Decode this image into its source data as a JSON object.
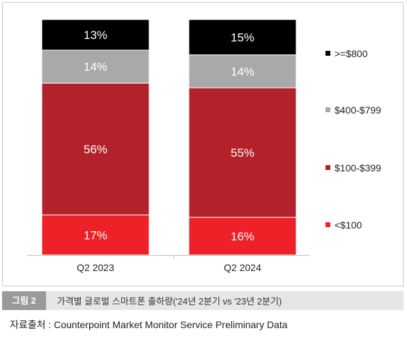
{
  "chart_data": {
    "type": "bar",
    "stacked": true,
    "normalized_percent": true,
    "categories": [
      "Q2 2023",
      "Q2 2024"
    ],
    "series": [
      {
        "name": "<$100",
        "values": [
          17,
          16
        ],
        "color": "#ee2028",
        "label_color": "#ffffff"
      },
      {
        "name": "$100-$399",
        "values": [
          56,
          55
        ],
        "color": "#b3212a",
        "label_color": "#ffffff"
      },
      {
        "name": "$400-$799",
        "values": [
          14,
          14
        ],
        "color": "#a9a9a9",
        "label_color": "#ffffff"
      },
      {
        "name": ">=$800",
        "values": [
          13,
          15
        ],
        "color": "#000000",
        "label_color": "#ffffff"
      }
    ],
    "data_labels": [
      [
        "17%",
        "16%"
      ],
      [
        "56%",
        "55%"
      ],
      [
        "14%",
        "14%"
      ],
      [
        "13%",
        "15%"
      ]
    ],
    "legend_position": "right",
    "legend_order": [
      3,
      2,
      1,
      0
    ],
    "grid": false,
    "ylim": [
      0,
      100
    ],
    "title": "",
    "xlabel": "",
    "ylabel": ""
  },
  "caption": {
    "tag": "그림 2",
    "title": "가격별 글로벌 스마트폰 출하량('24년 2분기 vs '23년 2분기)"
  },
  "source": "자료출처 : Counterpoint Market Monitor Service Preliminary Data"
}
